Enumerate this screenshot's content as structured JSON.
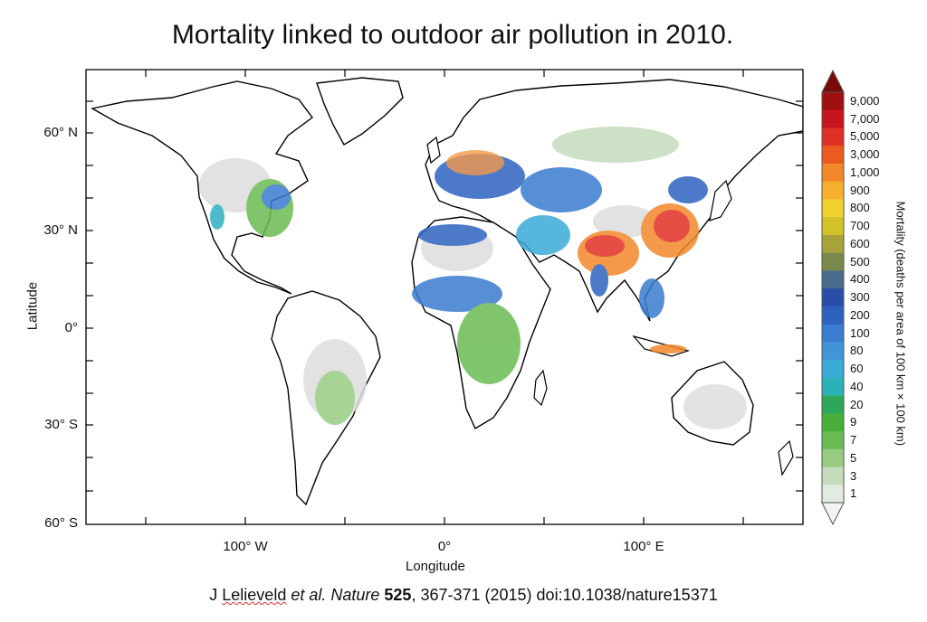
{
  "title": "Mortality linked to outdoor air pollution in 2010.",
  "map": {
    "xlabel": "Longitude",
    "ylabel": "Latitude",
    "x_ticks": [
      "100° W",
      "0°",
      "100° E"
    ],
    "y_ticks": [
      "60° N",
      "30° N",
      "0°",
      "30° S",
      "60° S"
    ],
    "palette": {
      "land": "#ffffff",
      "ocean": "#ffffff",
      "coast": "#000000"
    }
  },
  "colorbar": {
    "title": "Mortality (deaths per area of 100 km × 100 km)",
    "levels": [
      "9,000",
      "7,000",
      "5,000",
      "3,000",
      "1,000",
      "900",
      "800",
      "700",
      "600",
      "500",
      "400",
      "300",
      "200",
      "100",
      "80",
      "60",
      "40",
      "20",
      "9",
      "7",
      "5",
      "3",
      "1"
    ],
    "colors": [
      "#a01010",
      "#c8141c",
      "#e03024",
      "#ec5a20",
      "#f2882a",
      "#f6b02e",
      "#f0d22e",
      "#d2c22a",
      "#a8a23a",
      "#7a8a4c",
      "#4a6a8a",
      "#2a4ea8",
      "#2e62c0",
      "#3a7cd0",
      "#4294d8",
      "#3aaad6",
      "#2ab2b8",
      "#2ea858",
      "#46b03a",
      "#6abc52",
      "#98cc82",
      "#c4dcbc",
      "#e2ebe2"
    ]
  },
  "citation": {
    "prefix": "J ",
    "author": "Lelieveld",
    "etal": " et al.",
    "journal": " Nature",
    "volume": " 525",
    "rest": ", 367-371 (2015) doi:10.1038/nature15371"
  }
}
